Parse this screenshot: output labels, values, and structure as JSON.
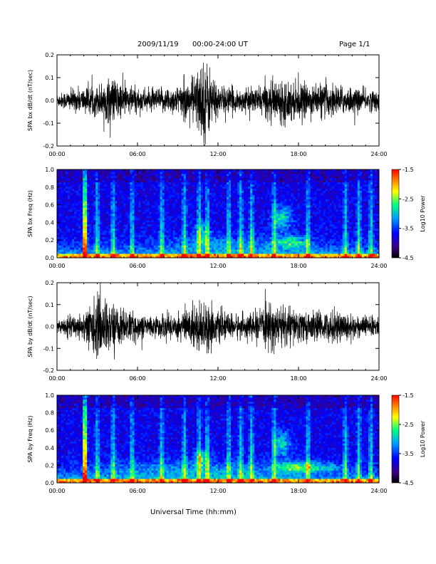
{
  "header": {
    "date": "2009/11/19",
    "range": "00:00-24:00 UT",
    "page": "Page 1/1"
  },
  "footer": {
    "xlabel": "Universal Time (hh:mm)"
  },
  "colors": {
    "trace": "#000000",
    "colorbar": [
      "#000000",
      "#3a0080",
      "#0000ff",
      "#00a0ff",
      "#00ff80",
      "#ffff00",
      "#ff8000",
      "#ff0000"
    ]
  },
  "chart_data": [
    {
      "type": "line",
      "ylabel": "SPA bx dB/dt (nT/sec)",
      "x_ticks": [
        "00:00",
        "06:00",
        "12:00",
        "18:00",
        "24:00"
      ],
      "y_ticks": [
        "-0.2",
        "-0.1",
        "0.0",
        "0.1",
        "0.2"
      ],
      "xlim": [
        0,
        24
      ],
      "ylim": [
        -0.2,
        0.2
      ],
      "units_x": "hours UT",
      "activity_envelope": {
        "hours": [
          0,
          1,
          2,
          3,
          4,
          5,
          6,
          7,
          8,
          9,
          10,
          11,
          12,
          13,
          14,
          15,
          16,
          17,
          18,
          19,
          20,
          21,
          22,
          23,
          24
        ],
        "amplitude": [
          0.03,
          0.05,
          0.06,
          0.07,
          0.11,
          0.08,
          0.06,
          0.05,
          0.06,
          0.07,
          0.1,
          0.2,
          0.07,
          0.06,
          0.05,
          0.06,
          0.09,
          0.1,
          0.08,
          0.07,
          0.08,
          0.07,
          0.06,
          0.05,
          0.05
        ]
      }
    },
    {
      "type": "heatmap",
      "ylabel": "SPA bx Freq (Hz)",
      "x_ticks": [
        "00:00",
        "06:00",
        "12:00",
        "18:00",
        "24:00"
      ],
      "y_ticks": [
        "0.0",
        "0.2",
        "0.4",
        "0.6",
        "0.8",
        "1.0"
      ],
      "xlim": [
        0,
        24
      ],
      "ylim": [
        0.0,
        1.0
      ],
      "colorbar": {
        "label": "Log10 Power",
        "range": [
          -4.5,
          -1.5
        ],
        "ticks": [
          "-1.5",
          "-2.5",
          "-3.5",
          "-4.5"
        ]
      }
    },
    {
      "type": "line",
      "ylabel": "SPA by dB/dt (nT/sec)",
      "x_ticks": [
        "00:00",
        "06:00",
        "12:00",
        "18:00",
        "24:00"
      ],
      "y_ticks": [
        "-0.2",
        "-0.1",
        "0.0",
        "0.1",
        "0.2"
      ],
      "xlim": [
        0,
        24
      ],
      "ylim": [
        -0.2,
        0.2
      ],
      "units_x": "hours UT",
      "activity_envelope": {
        "hours": [
          0,
          1,
          2,
          3,
          4,
          5,
          6,
          7,
          8,
          9,
          10,
          11,
          12,
          13,
          14,
          15,
          16,
          17,
          18,
          19,
          20,
          21,
          22,
          23,
          24
        ],
        "amplitude": [
          0.03,
          0.05,
          0.07,
          0.15,
          0.12,
          0.08,
          0.06,
          0.05,
          0.06,
          0.07,
          0.1,
          0.13,
          0.07,
          0.06,
          0.06,
          0.07,
          0.11,
          0.1,
          0.08,
          0.07,
          0.07,
          0.08,
          0.06,
          0.05,
          0.05
        ]
      }
    },
    {
      "type": "heatmap",
      "ylabel": "SPA by Freq (Hz)",
      "x_ticks": [
        "00:00",
        "06:00",
        "12:00",
        "18:00",
        "24:00"
      ],
      "y_ticks": [
        "0.0",
        "0.2",
        "0.4",
        "0.6",
        "0.8",
        "1.0"
      ],
      "xlim": [
        0,
        24
      ],
      "ylim": [
        0.0,
        1.0
      ],
      "colorbar": {
        "label": "Log10 Power",
        "range": [
          -4.5,
          -1.5
        ],
        "ticks": [
          "-1.5",
          "-2.5",
          "-3.5",
          "-4.5"
        ]
      }
    }
  ]
}
